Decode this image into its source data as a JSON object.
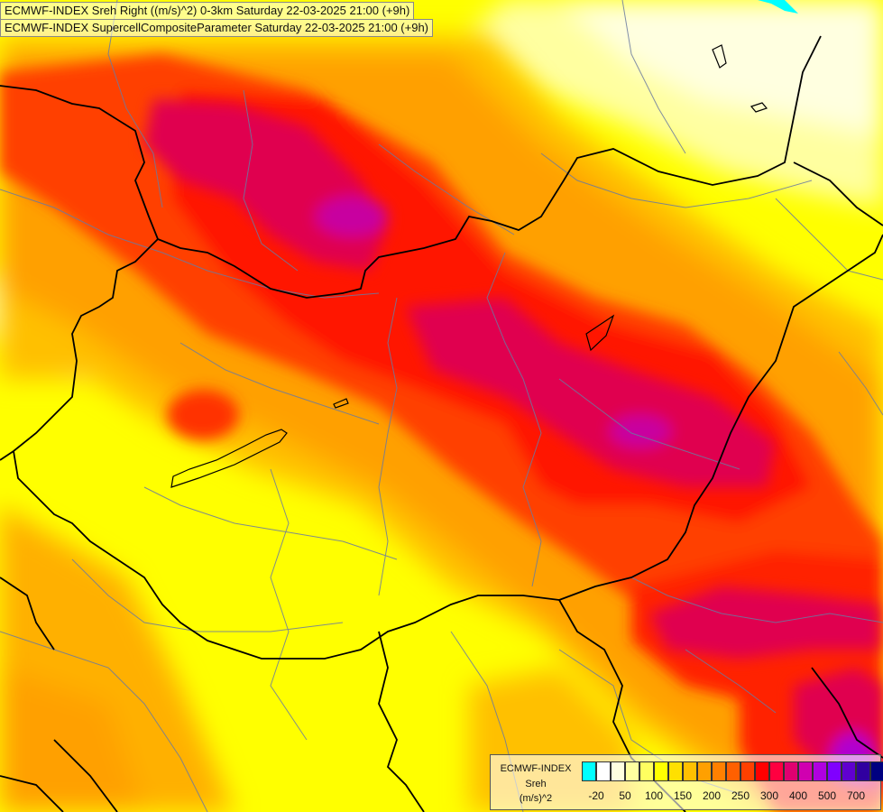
{
  "titles": {
    "line1": "ECMWF-INDEX Sreh Right ((m/s)^2) 0-3km Saturday 22-03-2025 21:00 (+9h)",
    "line2": "ECMWF-INDEX SupercellCompositeParameter Saturday 22-03-2025 21:00 (+9h)"
  },
  "legend": {
    "title": "ECMWF-INDEX",
    "variable": "Sreh",
    "unit": "(m/s)^2",
    "colors": [
      "#00ffff",
      "#ffffff",
      "#ffffe0",
      "#ffffa0",
      "#ffff60",
      "#ffff00",
      "#ffe000",
      "#ffc000",
      "#ffa000",
      "#ff8000",
      "#ff6000",
      "#ff4000",
      "#ff0000",
      "#ff0040",
      "#e00070",
      "#d000b0",
      "#b000e0",
      "#8000ff",
      "#6000d0",
      "#3000a0",
      "#000080"
    ],
    "ticks": [
      "-20",
      "50",
      "100",
      "150",
      "200",
      "250",
      "300",
      "400",
      "500",
      "700"
    ]
  },
  "colors": {
    "low": "#ffff00",
    "medium": "#ffa000",
    "high": "#ff2a00",
    "very_high": "#e0006a"
  }
}
